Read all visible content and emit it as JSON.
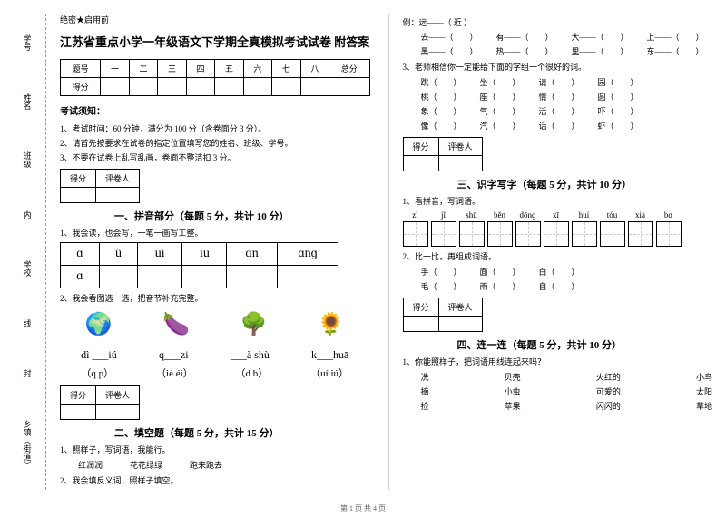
{
  "margin": {
    "labels": [
      "学号",
      "姓名",
      "班级",
      "学校",
      "乡镇（街道）"
    ],
    "hints": [
      "题",
      "内",
      "线",
      "封",
      "密"
    ]
  },
  "secret": "绝密★启用前",
  "title": "江苏省重点小学一年级语文下学期全真模拟考试试卷 附答案",
  "scoreHeaders": [
    "题号",
    "一",
    "二",
    "三",
    "四",
    "五",
    "六",
    "七",
    "八",
    "总分"
  ],
  "scoreRow": "得分",
  "noticeTitle": "考试须知：",
  "notices": [
    "1、考试时间：60 分钟，满分为 100 分（含卷面分 3 分）。",
    "2、请首先按要求在试卷的指定位置填写您的姓名、班级、学号。",
    "3、不要在试卷上乱写乱画，卷面不整洁扣 3 分。"
  ],
  "scoreBox": {
    "c1": "得分",
    "c2": "评卷人"
  },
  "sec1": {
    "title": "一、拼音部分（每题 5 分，共计 10 分）",
    "q1": "1、我会读，也会写，一笔一画写工整。",
    "letters": [
      "ɑ",
      "ü",
      "ui",
      "iu",
      "ɑn",
      "ɑnɡ"
    ],
    "q2": "2、我会看图选一选，把音节补充完整。",
    "pics": {
      "p1": {
        "icon": "🌍",
        "text": "dì ___iú",
        "paren": "（q  p）"
      },
      "p2": {
        "icon": "🍆",
        "text": "q___zi",
        "paren": "（ié  éi）"
      },
      "p3": {
        "icon": "🌳",
        "text": "___à shù",
        "paren": "（d  b）"
      },
      "p4": {
        "icon": "🌻",
        "text": "k___huā",
        "paren": "（uí  iú）"
      }
    }
  },
  "sec2": {
    "title": "二、填空题（每题 5 分，共计 15 分）",
    "q1": "1、照样子，写词语，我能行。",
    "items": [
      "红润润",
      "花花绿绿",
      "跑来跑去"
    ],
    "q2": "2、我会填反义词，照样子填空。"
  },
  "right": {
    "example": "例：远——（ 近 ）",
    "antonyms": [
      [
        "去——（　　）",
        "有——（　　）",
        "大——（　　）",
        "上——（　　）"
      ],
      [
        "黑——（　　）",
        "热——（　　）",
        "里——（　　）",
        "东——（　　）"
      ]
    ],
    "q3": "3、老师相信你一定能给下面的字组一个很好的词。",
    "groups": [
      [
        "跳（　　）",
        "坐（　　）",
        "请（　　）",
        "园（　　）"
      ],
      [
        "桃（　　）",
        "座（　　）",
        "情（　　）",
        "圆（　　）"
      ],
      [
        "象（　　）",
        "气（　　）",
        "活（　　）",
        "吓（　　）"
      ],
      [
        "像（　　）",
        "汽（　　）",
        "话（　　）",
        "虾（　　）"
      ]
    ]
  },
  "sec3": {
    "title": "三、识字写字（每题 5 分，共计 10 分）",
    "q1": "1、看拼音，写词语。",
    "pinyins": [
      "zì",
      "jǐ",
      "shū",
      "běn",
      "dōnɡ",
      "xī",
      "huí",
      "tóu",
      "xià",
      "bɑ"
    ],
    "q2": "2、比一比，再组成词语。",
    "pairs": [
      [
        "手（　　）",
        "面（　　）",
        "白（　　）"
      ],
      [
        "毛（　　）",
        "雨（　　）",
        "自（　　）"
      ]
    ]
  },
  "sec4": {
    "title": "四、连一连（每题 5 分，共计 10 分）",
    "q1": "1、你能照样子，把词语用线连起来吗？",
    "rows": [
      [
        "洗",
        "贝壳",
        "火红的",
        "小鸟"
      ],
      [
        "摘",
        "小虫",
        "可爱的",
        "太阳"
      ],
      [
        "捡",
        "苹果",
        "闪闪的",
        "草地"
      ]
    ]
  },
  "footer": "第 1 页 共 4 页"
}
